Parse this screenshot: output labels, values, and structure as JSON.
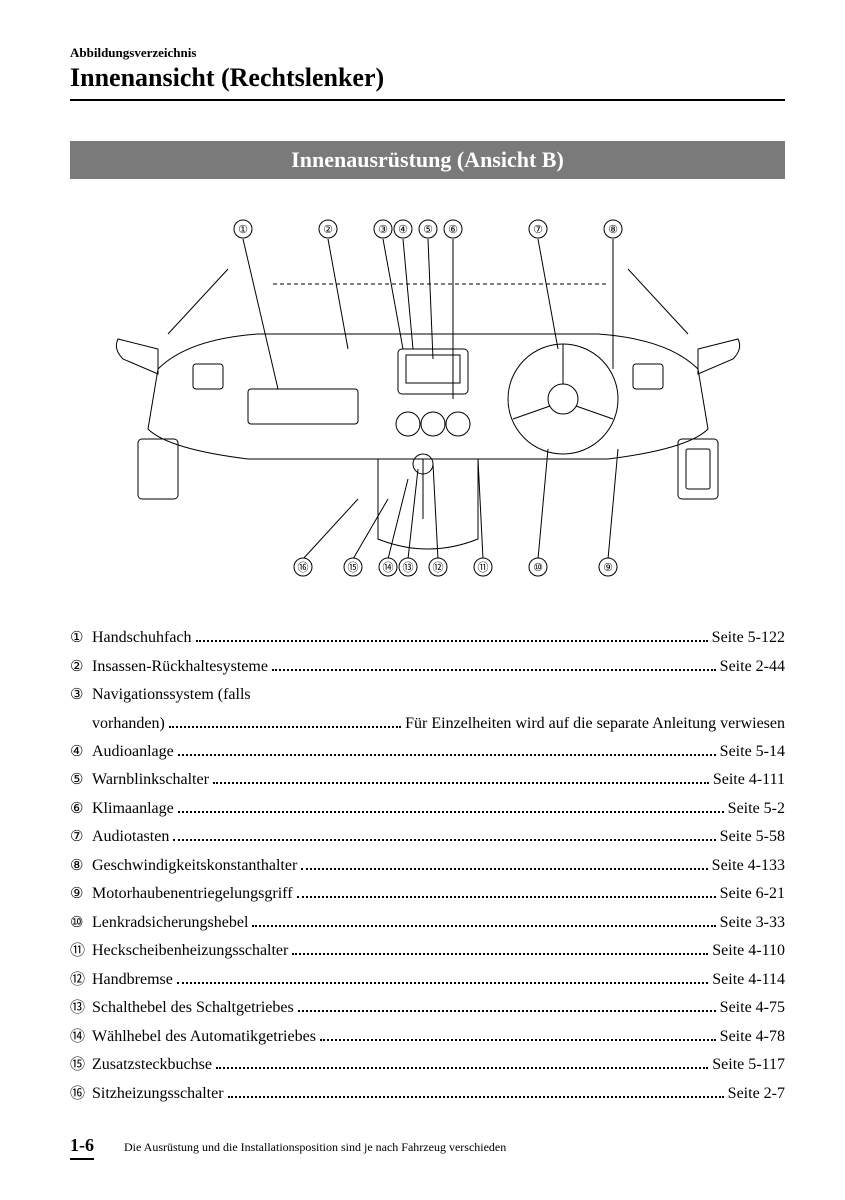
{
  "header": {
    "breadcrumb": "Abbildungsverzeichnis",
    "title": "Innenansicht (Rechtslenker)"
  },
  "section": {
    "banner": "Innenausrüstung (Ansicht B)"
  },
  "diagram": {
    "type": "technical-line-drawing",
    "description": "car-dashboard-interior-rhd",
    "top_callouts": [
      "①",
      "②",
      "③",
      "④",
      "⑤",
      "⑥",
      "⑦",
      "⑧"
    ],
    "bottom_callouts": [
      "⑯",
      "⑮",
      "⑭",
      "⑬",
      "⑫",
      "⑪",
      "⑩",
      "⑨"
    ],
    "stroke_color": "#000000",
    "background_color": "#ffffff",
    "line_width": 1
  },
  "index": [
    {
      "num": "①",
      "label": "Handschuhfach",
      "page": "Seite 5-122"
    },
    {
      "num": "②",
      "label": "Insassen-Rückhaltesysteme",
      "page": "Seite 2-44"
    },
    {
      "num": "③",
      "label": "Navigationssystem (falls",
      "cont": "vorhanden)",
      "page": "Für Einzelheiten wird auf die separate Anleitung verwiesen"
    },
    {
      "num": "④",
      "label": "Audioanlage",
      "page": "Seite 5-14"
    },
    {
      "num": "⑤",
      "label": "Warnblinkschalter",
      "page": "Seite 4-111"
    },
    {
      "num": "⑥",
      "label": "Klimaanlage",
      "page": "Seite 5-2"
    },
    {
      "num": "⑦",
      "label": "Audiotasten",
      "page": "Seite 5-58"
    },
    {
      "num": "⑧",
      "label": "Geschwindigkeitskonstanthalter",
      "page": "Seite 4-133"
    },
    {
      "num": "⑨",
      "label": "Motorhaubenentriegelungsgriff",
      "page": "Seite 6-21"
    },
    {
      "num": "⑩",
      "label": "Lenkradsicherungshebel",
      "page": "Seite 3-33"
    },
    {
      "num": "⑪",
      "label": "Heckscheibenheizungsschalter",
      "page": "Seite 4-110"
    },
    {
      "num": "⑫",
      "label": "Handbremse",
      "page": "Seite 4-114"
    },
    {
      "num": "⑬",
      "label": "Schalthebel des Schaltgetriebes",
      "page": "Seite 4-75"
    },
    {
      "num": "⑭",
      "label": "Wählhebel des Automatikgetriebes",
      "page": "Seite 4-78"
    },
    {
      "num": "⑮",
      "label": "Zusatzsteckbuchse",
      "page": "Seite 5-117"
    },
    {
      "num": "⑯",
      "label": "Sitzheizungsschalter",
      "page": "Seite 2-7"
    }
  ],
  "footer": {
    "page_number": "1-6",
    "note": "Die Ausrüstung und die Installationsposition sind je nach Fahrzeug verschieden"
  },
  "styling": {
    "banner_bg": "#7a7a7a",
    "banner_fg": "#ffffff",
    "text_color": "#000000",
    "title_fontsize": 26,
    "body_fontsize": 16,
    "footer_note_fontsize": 12
  }
}
